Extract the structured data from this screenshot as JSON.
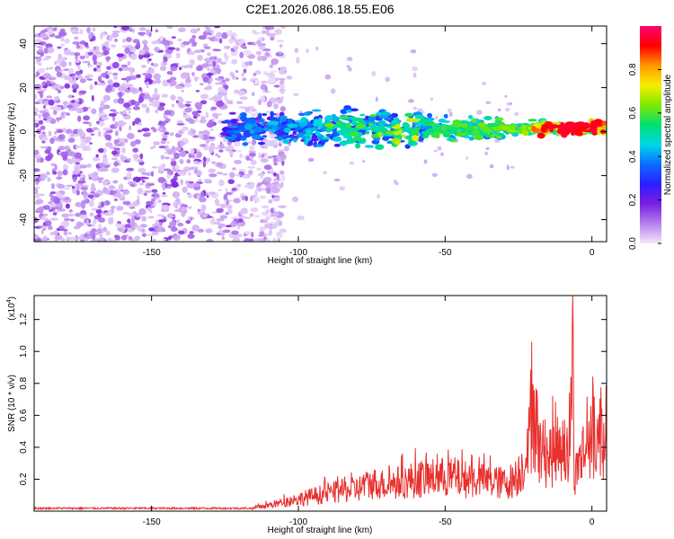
{
  "title": "C2E1.2026.086.18.55.E06",
  "chart_data": [
    {
      "type": "heatmap",
      "name": "spectrogram",
      "xlabel": "Height of straight line (km)",
      "ylabel": "Frequency (Hz)",
      "xlim": [
        -190,
        5
      ],
      "ylim": [
        -50,
        48
      ],
      "xticks": [
        -150,
        -100,
        -50,
        0
      ],
      "yticks": [
        -40,
        -20,
        0,
        20,
        40
      ],
      "colorbar": {
        "label": "Normalized spectral amplitude",
        "range": [
          0.0,
          1.0
        ],
        "ticks": [
          0.0,
          0.2,
          0.4,
          0.6,
          0.8
        ],
        "colormap": [
          "#f4e8fb",
          "#b580ee",
          "#7a1fe0",
          "#2c1dff",
          "#0a6cff",
          "#00d8e6",
          "#00e070",
          "#7fe800",
          "#f6ef00",
          "#ff9800",
          "#ff0000",
          "#ff0077"
        ]
      },
      "features": [
        {
          "description": "scattered noise",
          "x_range": [
            -190,
            -105
          ],
          "freq_range": [
            -50,
            48
          ],
          "amplitude": 0.1
        },
        {
          "description": "signal band",
          "x_range": [
            -125,
            5
          ],
          "center_freq": 0,
          "amplitude_peak": 0.95,
          "peak_near_x": -5
        }
      ]
    },
    {
      "type": "line",
      "name": "snr",
      "xlabel": "Height of straight line (km)",
      "ylabel": "SNR (10 * v/v)",
      "yscale_label": "(x10",
      "yscale_exp": "4",
      "xlim": [
        -190,
        5
      ],
      "ylim": [
        0,
        1.35
      ],
      "xticks": [
        -150,
        -100,
        -50,
        0
      ],
      "yticks": [
        0.2,
        0.4,
        0.6,
        0.8,
        1.0,
        1.2
      ],
      "ytick_labels": [
        "0.2",
        "0.4",
        "0.6",
        "0.8",
        "1.0",
        "1.2"
      ],
      "color": "#e8302e",
      "envelope_x": [
        -190,
        -140,
        -115,
        -108,
        -100,
        -90,
        -80,
        -75,
        -70,
        -60,
        -50,
        -40,
        -30,
        -26,
        -22,
        -20,
        -18,
        -15,
        -12,
        -10,
        -8,
        -6.5,
        -6,
        -5,
        -3,
        0,
        2,
        5
      ],
      "envelope_y": [
        0.02,
        0.02,
        0.03,
        0.07,
        0.12,
        0.18,
        0.22,
        0.28,
        0.26,
        0.32,
        0.34,
        0.31,
        0.28,
        0.32,
        0.55,
        1.05,
        0.62,
        0.55,
        0.6,
        0.72,
        0.5,
        1.35,
        0.28,
        0.45,
        0.6,
        0.68,
        0.75,
        0.8
      ],
      "spikes": [
        {
          "x": -20.5,
          "y": 1.06
        },
        {
          "x": -6.5,
          "y": 1.35
        }
      ]
    }
  ]
}
